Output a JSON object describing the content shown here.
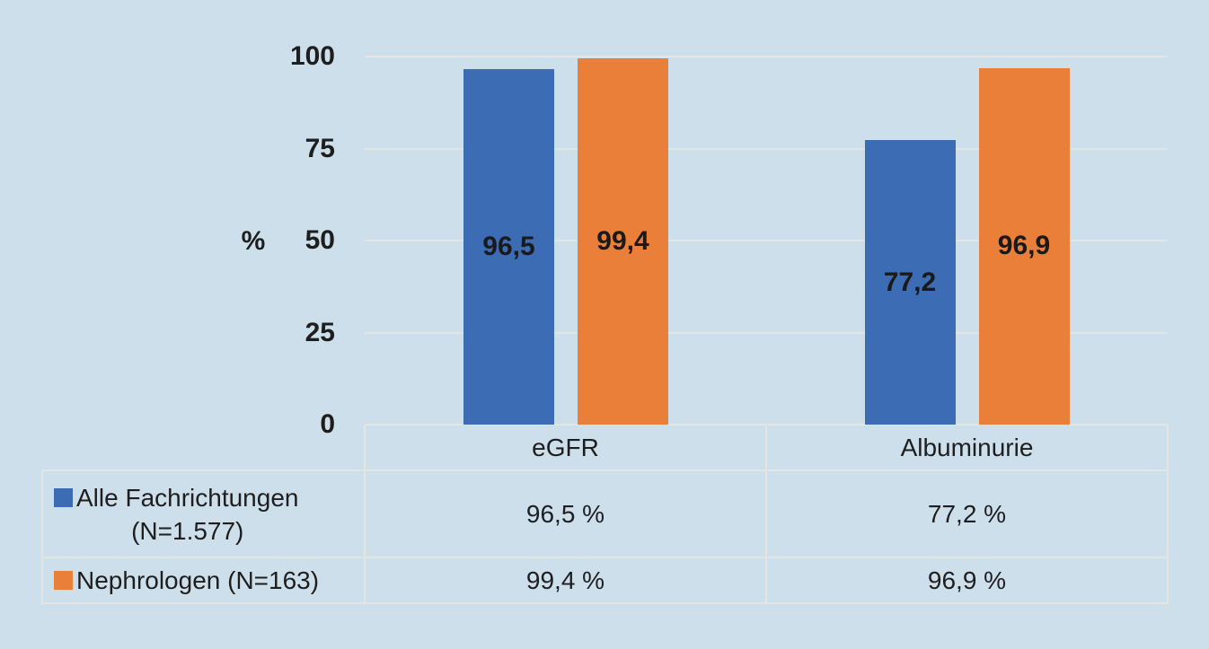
{
  "colors": {
    "background": "#CEDFEC",
    "series_blue": "#3C6CB3",
    "series_orange": "#E97F39",
    "gridline": "#E4E4E0",
    "text": "#1E1E1E"
  },
  "chart_data": {
    "type": "bar",
    "title": "",
    "xlabel": "",
    "ylabel": "%",
    "ylim": [
      0,
      100
    ],
    "yticks": [
      "0",
      "25",
      "50",
      "75",
      "100"
    ],
    "grid": "horizontal",
    "legend_position": "table-left",
    "categories": [
      "eGFR",
      "Albuminurie"
    ],
    "series": [
      {
        "name": "Alle Fachrichtungen (N=1.577)",
        "legend_lines": [
          "Alle Fachrichtungen",
          "(N=1.577)"
        ],
        "color_key": "series_blue",
        "values": [
          96.5,
          77.2
        ],
        "bar_labels": [
          "96,5",
          "77,2"
        ],
        "table_values": [
          "96,5 %",
          "77,2 %"
        ]
      },
      {
        "name": "Nephrologen (N=163)",
        "legend_lines": [
          "Nephrologen (N=163)"
        ],
        "color_key": "series_orange",
        "values": [
          99.4,
          96.9
        ],
        "bar_labels": [
          "99,4",
          "96,9"
        ],
        "table_values": [
          "99,4 %",
          "96,9 %"
        ]
      }
    ]
  }
}
